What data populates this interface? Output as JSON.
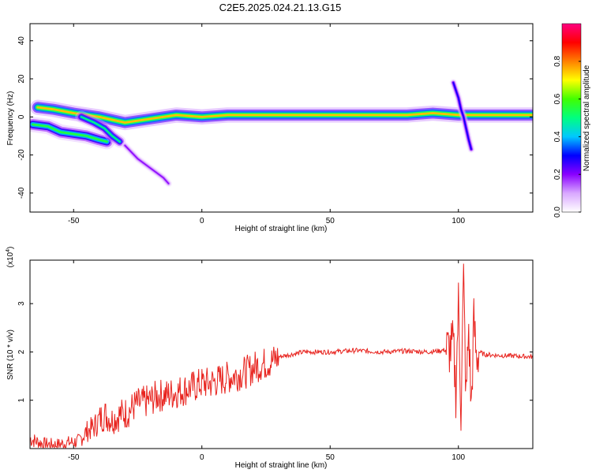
{
  "figure": {
    "title": "C2E5.2025.024.21.13.G15"
  },
  "chart_data": [
    {
      "type": "heatmap",
      "title": "",
      "xlabel": "Height of straight line (km)",
      "ylabel": "Frequency (Hz)",
      "xlim": [
        -67,
        129
      ],
      "ylim": [
        -50,
        49
      ],
      "x_ticks": [
        -50,
        0,
        50,
        100
      ],
      "y_ticks": [
        -40,
        -20,
        0,
        20,
        40
      ],
      "x_tick_labels": [
        "-50",
        "0",
        "50",
        "100"
      ],
      "y_tick_labels": [
        "-40",
        "-20",
        "0",
        "20",
        "40"
      ],
      "grid": false,
      "colorbar": {
        "label": "Normalized spectral amplitude",
        "range": [
          0,
          1
        ],
        "ticks": [
          0.0,
          0.2,
          0.4,
          0.6,
          0.8
        ],
        "tick_labels": [
          "0.0",
          "0.2",
          "0.4",
          "0.6",
          "0.8"
        ],
        "colors": [
          "#ffffff",
          "#d9a8ff",
          "#8a00ff",
          "#0000ff",
          "#00c8ff",
          "#00ff80",
          "#40ff00",
          "#ffff00",
          "#ff8000",
          "#ff0000",
          "#ff0080"
        ]
      },
      "ridges": [
        {
          "points": [
            [
              -64,
              5
            ],
            [
              -58,
              4
            ],
            [
              -50,
              2
            ],
            [
              -40,
              0
            ],
            [
              -30,
              -3
            ],
            [
              -20,
              -1
            ],
            [
              -10,
              1
            ],
            [
              0,
              0
            ],
            [
              10,
              1
            ],
            [
              20,
              1
            ],
            [
              40,
              1
            ],
            [
              60,
              1
            ],
            [
              80,
              1
            ],
            [
              90,
              2
            ],
            [
              100,
              1
            ],
            [
              110,
              1
            ],
            [
              129,
              1
            ]
          ],
          "amplitude": 0.75,
          "width": 2.5
        },
        {
          "points": [
            [
              -66,
              -4
            ],
            [
              -60,
              -5
            ],
            [
              -55,
              -8
            ],
            [
              -50,
              -9
            ],
            [
              -45,
              -10
            ],
            [
              -40,
              -12
            ],
            [
              -37,
              -13
            ]
          ],
          "amplitude": 0.55,
          "width": 2.5
        },
        {
          "points": [
            [
              -47,
              0
            ],
            [
              -42,
              -3
            ],
            [
              -38,
              -6
            ],
            [
              -35,
              -10
            ],
            [
              -32,
              -13
            ]
          ],
          "amplitude": 0.5,
          "width": 2.0
        },
        {
          "points": [
            [
              -30,
              -15
            ],
            [
              -25,
              -22
            ],
            [
              -20,
              -27
            ],
            [
              -15,
              -32
            ],
            [
              -13,
              -35
            ]
          ],
          "amplitude": 0.2,
          "width": 1.2
        },
        {
          "points": [
            [
              98,
              18
            ],
            [
              100,
              10
            ],
            [
              101,
              4
            ],
            [
              102,
              0
            ],
            [
              103,
              -6
            ],
            [
              104,
              -12
            ],
            [
              105,
              -17
            ]
          ],
          "amplitude": 0.3,
          "width": 1.2
        }
      ]
    },
    {
      "type": "line",
      "title": "",
      "xlabel": "Height of straight line (km)",
      "ylabel": "SNR (10 * v/v)",
      "y_multiplier_label": "(x10",
      "y_multiplier_exponent": "4",
      "y_multiplier_suffix": ")",
      "xlim": [
        -67,
        129
      ],
      "ylim": [
        0,
        3.9
      ],
      "x_ticks": [
        -50,
        0,
        50,
        100
      ],
      "y_ticks": [
        1,
        2,
        3
      ],
      "x_tick_labels": [
        "-50",
        "0",
        "50",
        "100"
      ],
      "y_tick_labels": [
        "1",
        "2",
        "3"
      ],
      "grid": false,
      "series": [
        {
          "color": "#e8241f",
          "x": [
            -67,
            -62,
            -57,
            -52,
            -48,
            -45,
            -42,
            -40,
            -38,
            -35,
            -32,
            -29,
            -26,
            -23,
            -20,
            -17,
            -14,
            -11,
            -8,
            -5,
            -2,
            0,
            3,
            6,
            9,
            12,
            15,
            18,
            21,
            24,
            27,
            30,
            35,
            40,
            50,
            60,
            70,
            80,
            88,
            92,
            96,
            98,
            99,
            100,
            101,
            102,
            103,
            104,
            105,
            106,
            107,
            108,
            110,
            115,
            120,
            129
          ],
          "y": [
            0.2,
            0.1,
            0.08,
            0.12,
            0.15,
            0.35,
            0.45,
            0.6,
            0.7,
            0.6,
            0.7,
            0.75,
            0.9,
            0.95,
            1.0,
            1.1,
            1.1,
            1.15,
            1.2,
            1.25,
            1.3,
            1.35,
            1.35,
            1.4,
            1.45,
            1.5,
            1.55,
            1.6,
            1.7,
            1.75,
            1.8,
            1.9,
            1.95,
            2.0,
            2.0,
            2.03,
            2.0,
            2.02,
            2.0,
            2.02,
            2.05,
            2.1,
            1.2,
            3.0,
            0.8,
            3.5,
            1.0,
            2.5,
            0.8,
            2.6,
            1.9,
            2.0,
            1.95,
            1.93,
            1.92,
            1.9
          ]
        }
      ]
    }
  ]
}
